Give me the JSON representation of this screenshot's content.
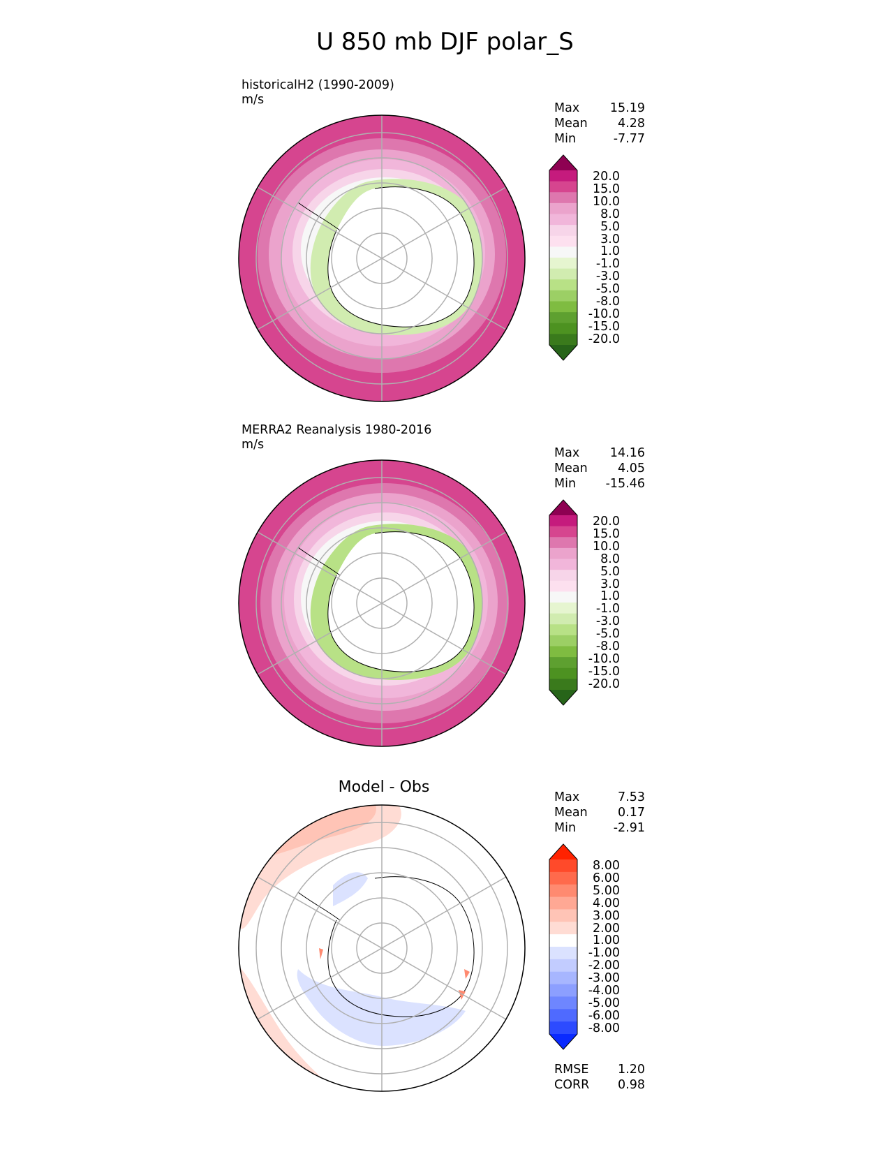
{
  "title": "U 850 mb DJF polar_S",
  "panels": [
    {
      "label_line1": "historicalH2 (1990-2009)",
      "label_line2": "m/s",
      "stats": {
        "max_label": "Max",
        "max": "15.19",
        "mean_label": "Mean",
        "mean": "4.28",
        "min_label": "Min",
        "min": "-7.77"
      },
      "colorbar_ticks": [
        "20.0",
        "15.0",
        "10.0",
        "8.0",
        "5.0",
        "3.0",
        "1.0",
        "-1.0",
        "-3.0",
        "-5.0",
        "-8.0",
        "-10.0",
        "-15.0",
        "-20.0"
      ]
    },
    {
      "label_line1": "MERRA2 Reanalysis 1980-2016",
      "label_line2": "m/s",
      "stats": {
        "max_label": "Max",
        "max": "14.16",
        "mean_label": "Mean",
        "mean": "4.05",
        "min_label": "Min",
        "min": "-15.46"
      },
      "colorbar_ticks": [
        "20.0",
        "15.0",
        "10.0",
        "8.0",
        "5.0",
        "3.0",
        "1.0",
        "-1.0",
        "-3.0",
        "-5.0",
        "-8.0",
        "-10.0",
        "-15.0",
        "-20.0"
      ]
    },
    {
      "label_center": "Model - Obs",
      "stats": {
        "max_label": "Max",
        "max": "7.53",
        "mean_label": "Mean",
        "mean": "0.17",
        "min_label": "Min",
        "min": "-2.91"
      },
      "colorbar_ticks": [
        "8.00",
        "6.00",
        "5.00",
        "4.00",
        "3.00",
        "2.00",
        "1.00",
        "-1.00",
        "-2.00",
        "-3.00",
        "-4.00",
        "-5.00",
        "-6.00",
        "-8.00"
      ],
      "rmse_label": "RMSE",
      "rmse": "1.20",
      "corr_label": "CORR",
      "corr": "0.98"
    }
  ],
  "chart_data": [
    {
      "type": "heatmap",
      "projection": "south polar stereographic",
      "colors": [
        "#8e0152",
        "#c51b7d",
        "#d6458f",
        "#de77ae",
        "#eba3cc",
        "#f1b6da",
        "#f7d5e9",
        "#fde0ef",
        "#f7f7f7",
        "#e6f5d0",
        "#d1ecb0",
        "#b8e186",
        "#9ccf65",
        "#7fbc41",
        "#5ea030",
        "#4d9221",
        "#3a7a1c",
        "#276419"
      ]
    },
    {
      "type": "heatmap",
      "projection": "south polar stereographic",
      "colors": [
        "#8e0152",
        "#c51b7d",
        "#d6458f",
        "#de77ae",
        "#eba3cc",
        "#f1b6da",
        "#f7d5e9",
        "#fde0ef",
        "#f7f7f7",
        "#e6f5d0",
        "#d1ecb0",
        "#b8e186",
        "#9ccf65",
        "#7fbc41",
        "#5ea030",
        "#4d9221",
        "#3a7a1c",
        "#276419"
      ]
    },
    {
      "type": "heatmap",
      "projection": "south polar stereographic",
      "colors": [
        "#ff2200",
        "#ff4a2a",
        "#ff6a4c",
        "#ff8a70",
        "#ffa894",
        "#ffc4b6",
        "#ffdcd4",
        "#ffffff",
        "#dbe2ff",
        "#c2ccff",
        "#a7b6ff",
        "#8c9fff",
        "#6e86ff",
        "#4f6aff",
        "#2d4bff",
        "#0a2aff"
      ]
    }
  ]
}
